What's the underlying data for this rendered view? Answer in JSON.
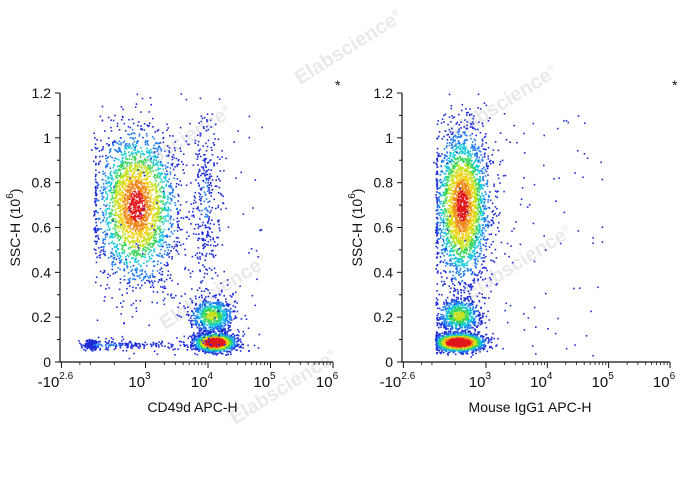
{
  "watermark": {
    "text": "Elabscience",
    "mark": "®"
  },
  "colors": {
    "density_scale": [
      "#1d2bd6",
      "#1f7bef",
      "#14c8d8",
      "#3ad65a",
      "#c4e21c",
      "#f0d21a",
      "#f0891a",
      "#e0161b"
    ],
    "axis": "#111111",
    "watermark": "#d8d8d8"
  },
  "chart_data": [
    {
      "type": "scatter",
      "subtype": "flow cytometry density dot plot",
      "corner_mark": "*",
      "xlabel": "CD49d APC-H",
      "ylabel": "SSC-H",
      "ylabel_unit": "(10",
      "ylabel_unit_exp": "6",
      "ylabel_unit_close": ")",
      "x_scale": "logicle (log10 of APC-H intensity)",
      "xlim": [
        -2.8,
        6
      ],
      "x_ticks": [
        {
          "base": "-10",
          "exp": "2.6",
          "value": -2.6
        },
        {
          "base": "10",
          "exp": "3",
          "value": 3
        },
        {
          "base": "10",
          "exp": "4",
          "value": 4
        },
        {
          "base": "10",
          "exp": "5",
          "value": 5
        },
        {
          "base": "10",
          "exp": "6",
          "value": 6
        }
      ],
      "ylim": [
        0,
        1.2
      ],
      "y_ticks": [
        "0",
        "0.2",
        "0.4",
        "0.6",
        "0.8",
        "1",
        "1.2"
      ],
      "grid": false,
      "populations": [
        {
          "name": "granulocytes",
          "x_log_center": 2.85,
          "y_center": 0.7,
          "x_spread": 0.32,
          "y_spread": 0.17,
          "density": "high"
        },
        {
          "name": "CD49d+ lymphocytes",
          "x_log_center": 4.1,
          "y_center": 0.09,
          "x_spread": 0.16,
          "y_spread": 0.02,
          "density": "very high"
        },
        {
          "name": "CD49d+ monocytes",
          "x_log_center": 4.05,
          "y_center": 0.21,
          "x_spread": 0.18,
          "y_spread": 0.04,
          "density": "medium"
        },
        {
          "name": "CD49d- lymphocytes",
          "x_log_center": 2.2,
          "y_center": 0.08,
          "x_spread": 0.9,
          "y_spread": 0.012,
          "density": "low"
        },
        {
          "name": "CD49d+ granulocyte tail",
          "x_log_center": 3.95,
          "y_center": 0.72,
          "x_spread": 0.12,
          "y_spread": 0.2,
          "density": "low"
        }
      ]
    },
    {
      "type": "scatter",
      "subtype": "flow cytometry density dot plot",
      "corner_mark": "*",
      "xlabel": "Mouse IgG1 APC-H",
      "ylabel": "SSC-H",
      "ylabel_unit": "(10",
      "ylabel_unit_exp": "6",
      "ylabel_unit_close": ")",
      "x_scale": "logicle (log10 of APC-H intensity)",
      "xlim": [
        -2.8,
        6
      ],
      "x_ticks": [
        {
          "base": "-10",
          "exp": "2.6",
          "value": -2.6
        },
        {
          "base": "10",
          "exp": "3",
          "value": 3
        },
        {
          "base": "10",
          "exp": "4",
          "value": 4
        },
        {
          "base": "10",
          "exp": "5",
          "value": 5
        },
        {
          "base": "10",
          "exp": "6",
          "value": 6
        }
      ],
      "ylim": [
        0,
        1.2
      ],
      "y_ticks": [
        "0",
        "0.2",
        "0.4",
        "0.6",
        "0.8",
        "1",
        "1.2"
      ],
      "grid": false,
      "populations": [
        {
          "name": "granulocytes",
          "x_log_center": 2.6,
          "y_center": 0.7,
          "x_spread": 0.22,
          "y_spread": 0.17,
          "density": "high"
        },
        {
          "name": "monocytes",
          "x_log_center": 2.55,
          "y_center": 0.21,
          "x_spread": 0.18,
          "y_spread": 0.04,
          "density": "medium"
        },
        {
          "name": "lymphocytes",
          "x_log_center": 2.55,
          "y_center": 0.09,
          "x_spread": 0.2,
          "y_spread": 0.02,
          "density": "very high"
        }
      ]
    }
  ]
}
